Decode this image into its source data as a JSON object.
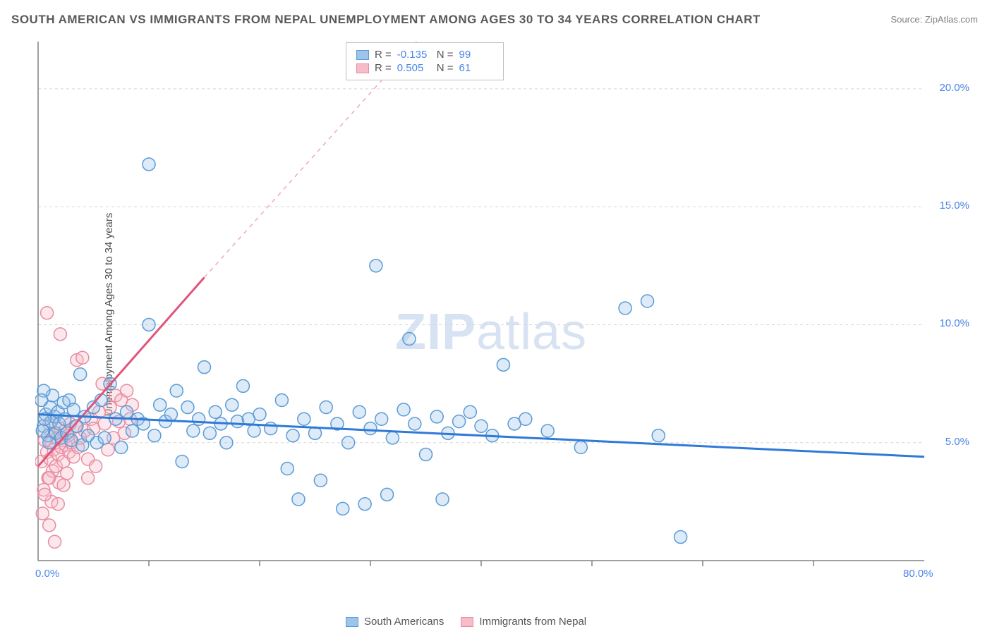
{
  "title": "SOUTH AMERICAN VS IMMIGRANTS FROM NEPAL UNEMPLOYMENT AMONG AGES 30 TO 34 YEARS CORRELATION CHART",
  "source_label": "Source: ",
  "source_value": "ZipAtlas.com",
  "ylabel": "Unemployment Among Ages 30 to 34 years",
  "watermark_bold": "ZIP",
  "watermark_light": "atlas",
  "chart": {
    "type": "scatter",
    "background_color": "#ffffff",
    "grid_color": "#d8d8d8",
    "axis_color": "#808080",
    "xlim": [
      0,
      80
    ],
    "ylim": [
      0,
      22
    ],
    "ytick_values": [
      5.0,
      10.0,
      15.0,
      20.0
    ],
    "ytick_labels": [
      "5.0%",
      "10.0%",
      "15.0%",
      "20.0%"
    ],
    "xtick_values": [
      0,
      80
    ],
    "xtick_labels": [
      "0.0%",
      "80.0%"
    ],
    "xtick_minor": [
      10,
      20,
      30,
      40,
      50,
      60,
      70
    ],
    "marker_radius": 9,
    "marker_stroke_width": 1.5,
    "marker_fill_opacity": 0.35,
    "trend_line_width": 3,
    "series": [
      {
        "name": "South Americans",
        "fill": "#9ec4ec",
        "stroke": "#5a9bd5",
        "R": "-0.135",
        "N": "99",
        "trend": {
          "x1": 0,
          "y1": 6.2,
          "x2": 80,
          "y2": 4.4,
          "color": "#2f79d8"
        },
        "points": [
          [
            0.5,
            5.7
          ],
          [
            0.7,
            6.2
          ],
          [
            0.9,
            5.3
          ],
          [
            1.1,
            6.5
          ],
          [
            1.2,
            5.9
          ],
          [
            1.3,
            7.0
          ],
          [
            1.5,
            6.1
          ],
          [
            1.6,
            5.4
          ],
          [
            1.8,
            6.3
          ],
          [
            1.9,
            5.8
          ],
          [
            2.1,
            5.2
          ],
          [
            2.3,
            6.7
          ],
          [
            2.4,
            6.0
          ],
          [
            2.6,
            5.4
          ],
          [
            2.8,
            6.8
          ],
          [
            3.0,
            5.1
          ],
          [
            3.2,
            6.4
          ],
          [
            3.5,
            5.7
          ],
          [
            3.8,
            7.9
          ],
          [
            4.0,
            4.9
          ],
          [
            4.2,
            6.1
          ],
          [
            4.5,
            5.3
          ],
          [
            5.0,
            6.5
          ],
          [
            5.3,
            5.0
          ],
          [
            5.7,
            6.8
          ],
          [
            6.0,
            5.2
          ],
          [
            6.5,
            7.5
          ],
          [
            7.0,
            6.0
          ],
          [
            7.5,
            4.8
          ],
          [
            8.0,
            6.3
          ],
          [
            8.5,
            5.5
          ],
          [
            9.0,
            6.0
          ],
          [
            9.5,
            5.8
          ],
          [
            10,
            10.0
          ],
          [
            10.5,
            5.3
          ],
          [
            11,
            6.6
          ],
          [
            11.5,
            5.9
          ],
          [
            12,
            6.2
          ],
          [
            12.5,
            7.2
          ],
          [
            13,
            4.2
          ],
          [
            13.5,
            6.5
          ],
          [
            14,
            5.5
          ],
          [
            14.5,
            6.0
          ],
          [
            15,
            8.2
          ],
          [
            15.5,
            5.4
          ],
          [
            16,
            6.3
          ],
          [
            16.5,
            5.8
          ],
          [
            17,
            5.0
          ],
          [
            17.5,
            6.6
          ],
          [
            18,
            5.9
          ],
          [
            18.5,
            7.4
          ],
          [
            19,
            6.0
          ],
          [
            19.5,
            5.5
          ],
          [
            20,
            6.2
          ],
          [
            21,
            5.6
          ],
          [
            22,
            6.8
          ],
          [
            22.5,
            3.9
          ],
          [
            23,
            5.3
          ],
          [
            23.5,
            2.6
          ],
          [
            24,
            6.0
          ],
          [
            25,
            5.4
          ],
          [
            25.5,
            3.4
          ],
          [
            26,
            6.5
          ],
          [
            27,
            5.8
          ],
          [
            27.5,
            2.2
          ],
          [
            28,
            5.0
          ],
          [
            29,
            6.3
          ],
          [
            29.5,
            2.4
          ],
          [
            30,
            5.6
          ],
          [
            30.5,
            12.5
          ],
          [
            31,
            6.0
          ],
          [
            31.5,
            2.8
          ],
          [
            32,
            5.2
          ],
          [
            33,
            6.4
          ],
          [
            33.5,
            9.4
          ],
          [
            34,
            5.8
          ],
          [
            35,
            4.5
          ],
          [
            36,
            6.1
          ],
          [
            36.5,
            2.6
          ],
          [
            37,
            5.4
          ],
          [
            38,
            5.9
          ],
          [
            39,
            6.3
          ],
          [
            40,
            5.7
          ],
          [
            41,
            5.3
          ],
          [
            42,
            8.3
          ],
          [
            43,
            5.8
          ],
          [
            44,
            6.0
          ],
          [
            46,
            5.5
          ],
          [
            49,
            4.8
          ],
          [
            53,
            10.7
          ],
          [
            55,
            11.0
          ],
          [
            56,
            5.3
          ],
          [
            58,
            1.0
          ],
          [
            10,
            16.8
          ],
          [
            0.5,
            7.2
          ],
          [
            1.0,
            5.0
          ],
          [
            0.3,
            6.8
          ],
          [
            0.4,
            5.5
          ],
          [
            0.6,
            6.0
          ]
        ]
      },
      {
        "name": "Immigrants from Nepal",
        "fill": "#f6bcc8",
        "stroke": "#e98ba1",
        "R": "0.505",
        "N": "61",
        "trend": {
          "x1": 0,
          "y1": 4.0,
          "x2": 15,
          "y2": 12.0,
          "color": "#e05578",
          "dash_x2": 38,
          "dash_y2": 24
        },
        "points": [
          [
            0.3,
            4.2
          ],
          [
            0.5,
            3.0
          ],
          [
            0.6,
            5.1
          ],
          [
            0.8,
            4.6
          ],
          [
            0.9,
            3.5
          ],
          [
            1.0,
            5.8
          ],
          [
            1.1,
            4.3
          ],
          [
            1.2,
            5.0
          ],
          [
            1.3,
            3.8
          ],
          [
            1.4,
            4.7
          ],
          [
            1.5,
            5.4
          ],
          [
            1.6,
            4.0
          ],
          [
            1.7,
            5.2
          ],
          [
            1.8,
            4.5
          ],
          [
            1.9,
            3.3
          ],
          [
            2.0,
            5.6
          ],
          [
            2.1,
            4.8
          ],
          [
            2.2,
            5.1
          ],
          [
            2.3,
            4.2
          ],
          [
            2.4,
            5.5
          ],
          [
            2.5,
            4.9
          ],
          [
            2.6,
            3.7
          ],
          [
            2.7,
            5.3
          ],
          [
            2.8,
            4.6
          ],
          [
            2.9,
            5.8
          ],
          [
            3.0,
            5.0
          ],
          [
            3.2,
            4.4
          ],
          [
            3.4,
            5.7
          ],
          [
            3.5,
            8.5
          ],
          [
            3.6,
            4.8
          ],
          [
            3.8,
            5.2
          ],
          [
            4.0,
            8.6
          ],
          [
            4.2,
            5.5
          ],
          [
            4.5,
            4.3
          ],
          [
            4.8,
            6.0
          ],
          [
            5.0,
            5.6
          ],
          [
            5.2,
            4.0
          ],
          [
            5.5,
            6.3
          ],
          [
            5.8,
            7.5
          ],
          [
            6.0,
            5.8
          ],
          [
            6.3,
            4.7
          ],
          [
            6.5,
            6.5
          ],
          [
            6.8,
            5.2
          ],
          [
            7.0,
            7.0
          ],
          [
            7.3,
            5.9
          ],
          [
            7.5,
            6.8
          ],
          [
            7.8,
            5.4
          ],
          [
            8.0,
            7.2
          ],
          [
            8.3,
            6.0
          ],
          [
            8.5,
            6.6
          ],
          [
            0.8,
            10.5
          ],
          [
            2.0,
            9.6
          ],
          [
            1.0,
            1.5
          ],
          [
            1.2,
            2.5
          ],
          [
            1.5,
            0.8
          ],
          [
            0.4,
            2.0
          ],
          [
            0.6,
            2.8
          ],
          [
            2.3,
            3.2
          ],
          [
            1.8,
            2.4
          ],
          [
            1.0,
            3.5
          ],
          [
            4.5,
            3.5
          ]
        ]
      }
    ]
  },
  "stats_labels": {
    "R": "R =",
    "N": "N ="
  },
  "legend": {
    "series1": "South Americans",
    "series2": "Immigrants from Nepal"
  }
}
